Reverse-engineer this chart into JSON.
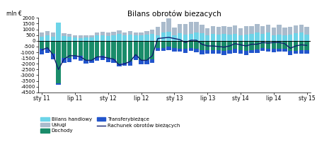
{
  "title": "Bilans obrotów biezacych",
  "ylabel": "mln €",
  "ylim": [
    -4500,
    2000
  ],
  "yticks": [
    -4500,
    -4000,
    -3500,
    -3000,
    -2500,
    -2000,
    -1500,
    -1000,
    -500,
    0,
    500,
    1000,
    1500,
    2000
  ],
  "xtick_labels": [
    "sty 11",
    "lip 11",
    "sty 12",
    "lip 12",
    "sty 13",
    "lip 13",
    "sty 14",
    "lip 14",
    "sty 15"
  ],
  "xtick_pos": [
    0,
    6,
    12,
    18,
    24,
    30,
    36,
    42,
    48
  ],
  "colors": {
    "bilans_handlowy": "#6DD4E8",
    "uslugi": "#AABBCC",
    "dochody": "#1A8C6A",
    "transfery": "#2255CC",
    "rachunek": "#10206E"
  },
  "bilans_handlowy": [
    350,
    450,
    350,
    1600,
    400,
    350,
    300,
    250,
    300,
    300,
    450,
    500,
    400,
    450,
    600,
    450,
    550,
    500,
    450,
    550,
    600,
    500,
    700,
    800,
    500,
    650,
    550,
    600,
    750,
    650,
    450,
    600,
    550,
    600,
    550,
    600,
    450,
    550,
    600,
    700,
    600,
    700,
    500,
    550,
    450,
    550,
    650,
    700,
    550
  ],
  "uslugi": [
    400,
    400,
    350,
    0,
    250,
    250,
    200,
    250,
    200,
    200,
    300,
    300,
    300,
    350,
    300,
    300,
    300,
    250,
    300,
    300,
    350,
    700,
    950,
    1150,
    650,
    800,
    900,
    1050,
    900,
    750,
    650,
    650,
    650,
    650,
    650,
    750,
    650,
    750,
    700,
    750,
    700,
    700,
    650,
    850,
    700,
    650,
    700,
    700,
    650
  ],
  "dochody": [
    -700,
    -700,
    -1100,
    -3700,
    -1500,
    -1500,
    -1300,
    -1300,
    -1700,
    -1700,
    -1400,
    -1300,
    -1500,
    -1600,
    -2000,
    -1900,
    -1800,
    -1300,
    -1700,
    -1700,
    -1600,
    -600,
    -600,
    -500,
    -600,
    -700,
    -700,
    -600,
    -700,
    -800,
    -800,
    -800,
    -800,
    -900,
    -800,
    -700,
    -800,
    -900,
    -800,
    -750,
    -650,
    -700,
    -700,
    -700,
    -700,
    -900,
    -900,
    -800,
    -800
  ],
  "transfery": [
    -500,
    -350,
    -500,
    -150,
    -450,
    -350,
    -300,
    -450,
    -300,
    -250,
    -350,
    -350,
    -350,
    -300,
    -250,
    -250,
    -350,
    -400,
    -350,
    -350,
    -300,
    -300,
    -250,
    -300,
    -350,
    -250,
    -350,
    -300,
    -300,
    -400,
    -350,
    -350,
    -300,
    -350,
    -350,
    -350,
    -300,
    -350,
    -250,
    -300,
    -250,
    -250,
    -300,
    -250,
    -250,
    -350,
    -250,
    -350,
    -350
  ],
  "rachunek": [
    -800,
    -600,
    -1200,
    -2500,
    -1600,
    -1300,
    -1300,
    -1400,
    -1700,
    -1700,
    -1400,
    -1400,
    -1500,
    -1600,
    -2100,
    -2000,
    -1800,
    -1200,
    -1700,
    -1700,
    -1300,
    200,
    250,
    300,
    200,
    100,
    -150,
    50,
    50,
    -300,
    -450,
    -450,
    -500,
    -550,
    -450,
    -250,
    -350,
    -450,
    -300,
    -300,
    -150,
    -200,
    -150,
    -150,
    -250,
    -650,
    -450,
    -350,
    -400
  ],
  "n_bars": 49
}
